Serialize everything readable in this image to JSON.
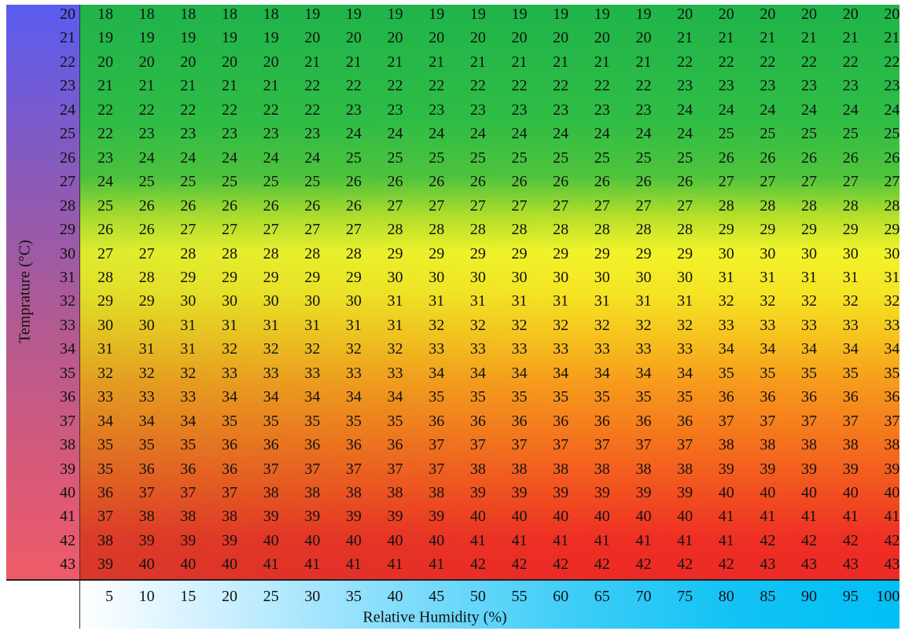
{
  "colors": {
    "cool": "#5a5cf0",
    "warm": "#ef5b68",
    "green": "#1fb44a",
    "yellow": "#f2f32a",
    "red": "#ec2a26",
    "humidity": "#00bff5"
  },
  "chart_data": {
    "type": "heatmap",
    "ylabel": "Temprature (°C)",
    "xlabel": "Relative Humidity (%)",
    "temperatures": [
      20,
      21,
      22,
      23,
      24,
      25,
      26,
      27,
      28,
      29,
      30,
      31,
      32,
      33,
      34,
      35,
      36,
      37,
      38,
      39,
      40,
      41,
      42,
      43
    ],
    "humidities": [
      5,
      10,
      15,
      20,
      25,
      30,
      35,
      40,
      45,
      50,
      55,
      60,
      65,
      70,
      75,
      80,
      85,
      90,
      95,
      100
    ],
    "values": [
      [
        18,
        18,
        18,
        18,
        18,
        19,
        19,
        19,
        19,
        19,
        19,
        19,
        19,
        19,
        20,
        20,
        20,
        20,
        20,
        20
      ],
      [
        19,
        19,
        19,
        19,
        19,
        20,
        20,
        20,
        20,
        20,
        20,
        20,
        20,
        20,
        21,
        21,
        21,
        21,
        21,
        21
      ],
      [
        20,
        20,
        20,
        20,
        20,
        21,
        21,
        21,
        21,
        21,
        21,
        21,
        21,
        21,
        22,
        22,
        22,
        22,
        22,
        22
      ],
      [
        21,
        21,
        21,
        21,
        21,
        22,
        22,
        22,
        22,
        22,
        22,
        22,
        22,
        22,
        23,
        23,
        23,
        23,
        23,
        23
      ],
      [
        22,
        22,
        22,
        22,
        22,
        22,
        23,
        23,
        23,
        23,
        23,
        23,
        23,
        23,
        24,
        24,
        24,
        24,
        24,
        24
      ],
      [
        22,
        23,
        23,
        23,
        23,
        23,
        24,
        24,
        24,
        24,
        24,
        24,
        24,
        24,
        24,
        25,
        25,
        25,
        25,
        25
      ],
      [
        23,
        24,
        24,
        24,
        24,
        24,
        25,
        25,
        25,
        25,
        25,
        25,
        25,
        25,
        25,
        26,
        26,
        26,
        26,
        26
      ],
      [
        24,
        25,
        25,
        25,
        25,
        25,
        26,
        26,
        26,
        26,
        26,
        26,
        26,
        26,
        26,
        27,
        27,
        27,
        27,
        27
      ],
      [
        25,
        26,
        26,
        26,
        26,
        26,
        26,
        27,
        27,
        27,
        27,
        27,
        27,
        27,
        27,
        28,
        28,
        28,
        28,
        28
      ],
      [
        26,
        26,
        27,
        27,
        27,
        27,
        27,
        28,
        28,
        28,
        28,
        28,
        28,
        28,
        28,
        29,
        29,
        29,
        29,
        29
      ],
      [
        27,
        27,
        28,
        28,
        28,
        28,
        28,
        29,
        29,
        29,
        29,
        29,
        29,
        29,
        29,
        30,
        30,
        30,
        30,
        30
      ],
      [
        28,
        28,
        29,
        29,
        29,
        29,
        29,
        30,
        30,
        30,
        30,
        30,
        30,
        30,
        30,
        31,
        31,
        31,
        31,
        31
      ],
      [
        29,
        29,
        30,
        30,
        30,
        30,
        30,
        31,
        31,
        31,
        31,
        31,
        31,
        31,
        31,
        32,
        32,
        32,
        32,
        32
      ],
      [
        30,
        30,
        31,
        31,
        31,
        31,
        31,
        31,
        32,
        32,
        32,
        32,
        32,
        32,
        32,
        33,
        33,
        33,
        33,
        33
      ],
      [
        31,
        31,
        31,
        32,
        32,
        32,
        32,
        32,
        33,
        33,
        33,
        33,
        33,
        33,
        33,
        34,
        34,
        34,
        34,
        34
      ],
      [
        32,
        32,
        32,
        33,
        33,
        33,
        33,
        33,
        34,
        34,
        34,
        34,
        34,
        34,
        34,
        35,
        35,
        35,
        35,
        35
      ],
      [
        33,
        33,
        33,
        34,
        34,
        34,
        34,
        34,
        35,
        35,
        35,
        35,
        35,
        35,
        35,
        36,
        36,
        36,
        36,
        36
      ],
      [
        34,
        34,
        34,
        35,
        35,
        35,
        35,
        35,
        36,
        36,
        36,
        36,
        36,
        36,
        36,
        37,
        37,
        37,
        37,
        37
      ],
      [
        35,
        35,
        35,
        36,
        36,
        36,
        36,
        36,
        37,
        37,
        37,
        37,
        37,
        37,
        37,
        38,
        38,
        38,
        38,
        38
      ],
      [
        35,
        36,
        36,
        36,
        37,
        37,
        37,
        37,
        37,
        38,
        38,
        38,
        38,
        38,
        38,
        39,
        39,
        39,
        39,
        39
      ],
      [
        36,
        37,
        37,
        37,
        38,
        38,
        38,
        38,
        38,
        39,
        39,
        39,
        39,
        39,
        39,
        40,
        40,
        40,
        40,
        40
      ],
      [
        37,
        38,
        38,
        38,
        39,
        39,
        39,
        39,
        39,
        40,
        40,
        40,
        40,
        40,
        40,
        41,
        41,
        41,
        41,
        41
      ],
      [
        38,
        39,
        39,
        39,
        40,
        40,
        40,
        40,
        40,
        41,
        41,
        41,
        41,
        41,
        41,
        41,
        42,
        42,
        42,
        42
      ],
      [
        39,
        40,
        40,
        40,
        41,
        41,
        41,
        41,
        41,
        42,
        42,
        42,
        42,
        42,
        42,
        42,
        43,
        43,
        43,
        43
      ]
    ]
  }
}
